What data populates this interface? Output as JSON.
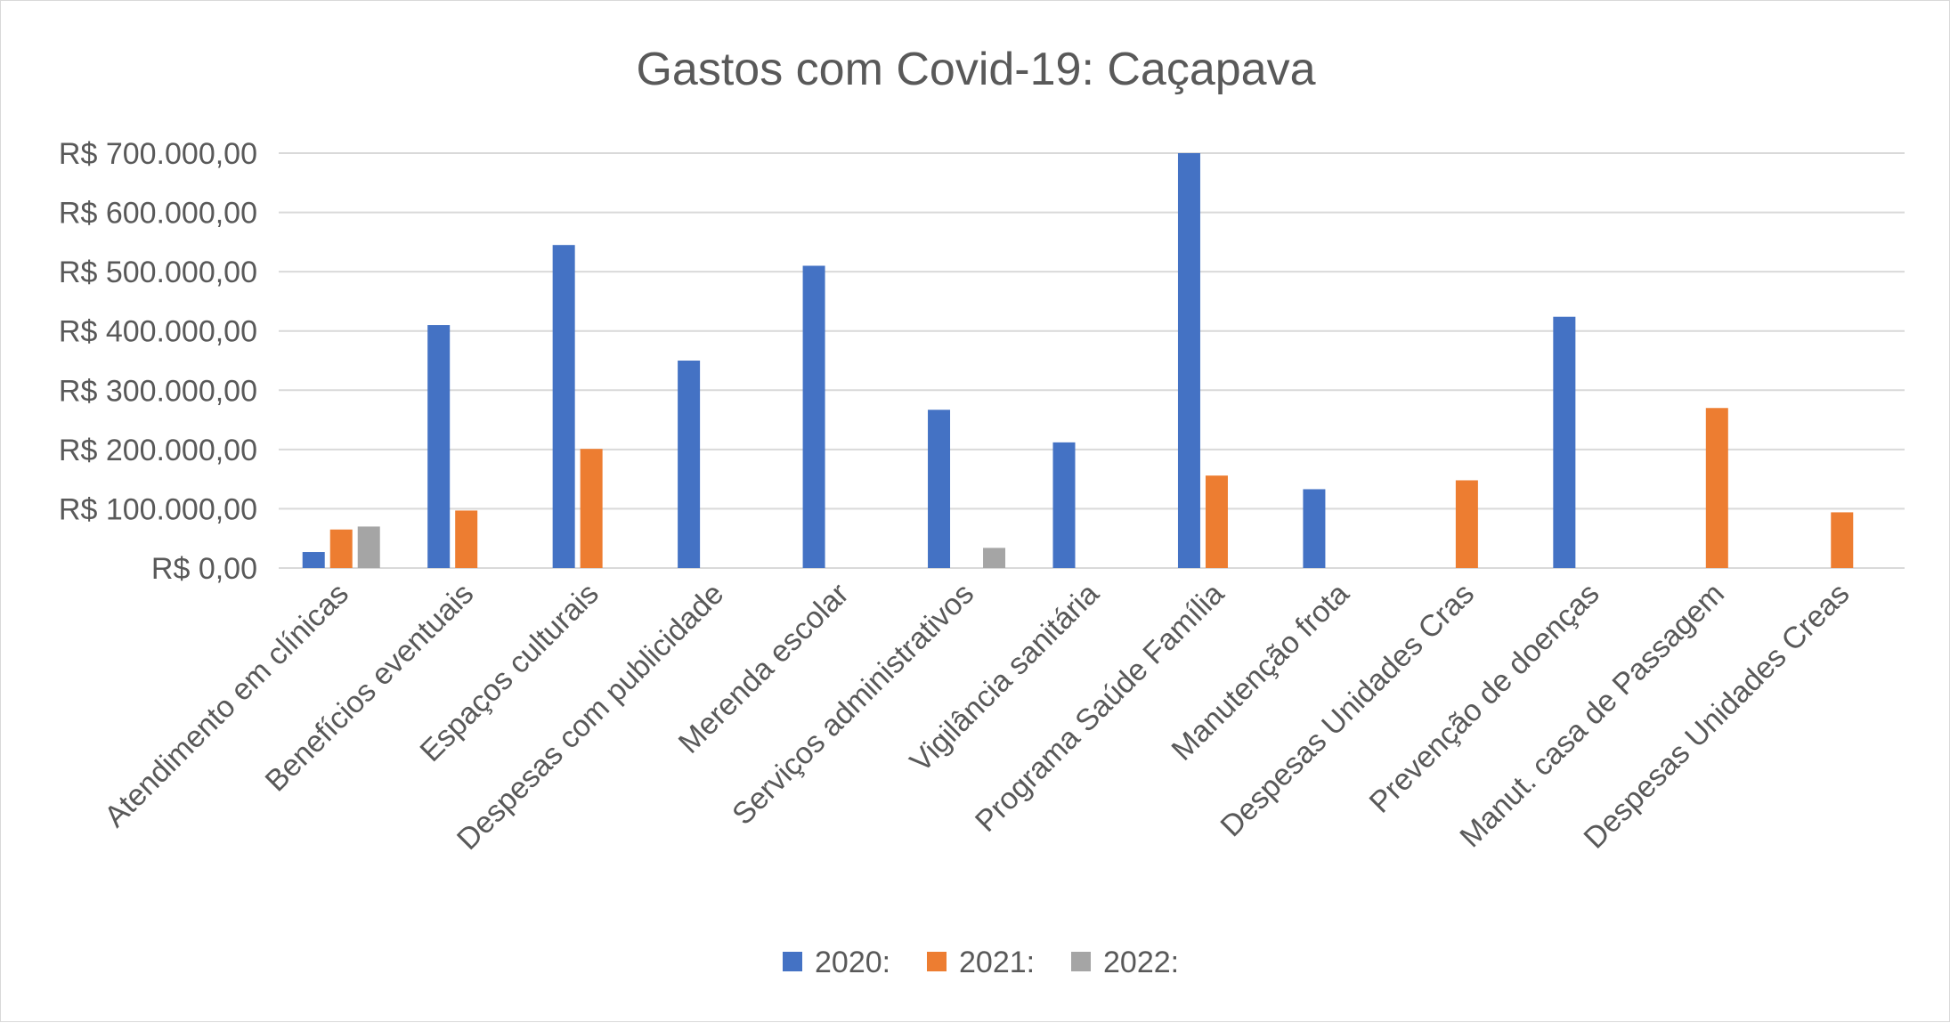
{
  "chart_data": {
    "type": "bar",
    "title": "Gastos com Covid-19: Caçapava",
    "xlabel": "",
    "ylabel": "",
    "ylim": [
      0,
      700000
    ],
    "yticks": [
      0,
      100000,
      200000,
      300000,
      400000,
      500000,
      600000,
      700000
    ],
    "ytick_labels": [
      "R$ 0,00",
      "R$ 100.000,00",
      "R$ 200.000,00",
      "R$ 300.000,00",
      "R$ 400.000,00",
      "R$ 500.000,00",
      "R$ 600.000,00",
      "R$ 700.000,00"
    ],
    "grid": true,
    "legend_position": "bottom",
    "categories": [
      "Atendimento em clínicas",
      "Benefícios eventuais",
      "Espaços culturais",
      "Despesas com publicidade",
      "Merenda escolar",
      "Serviços administrativos",
      "Vigilância sanitária",
      "Programa Saúde Família",
      "Manutenção frota",
      "Despesas Unidades Cras",
      "Prevenção de doenças",
      "Manut. casa de Passagem",
      "Despesas Unidades Creas"
    ],
    "series": [
      {
        "name": "2020:",
        "color": "#4472c4",
        "values": [
          27000,
          410000,
          545000,
          350000,
          510000,
          267000,
          212000,
          700000,
          133000,
          0,
          424000,
          0,
          0
        ]
      },
      {
        "name": "2021:",
        "color": "#ed7d31",
        "values": [
          65000,
          97000,
          201000,
          0,
          0,
          0,
          0,
          156000,
          0,
          148000,
          0,
          270000,
          94000
        ]
      },
      {
        "name": "2022:",
        "color": "#a5a5a5",
        "values": [
          70000,
          0,
          0,
          0,
          0,
          34000,
          0,
          0,
          0,
          0,
          0,
          0,
          0
        ]
      }
    ]
  }
}
